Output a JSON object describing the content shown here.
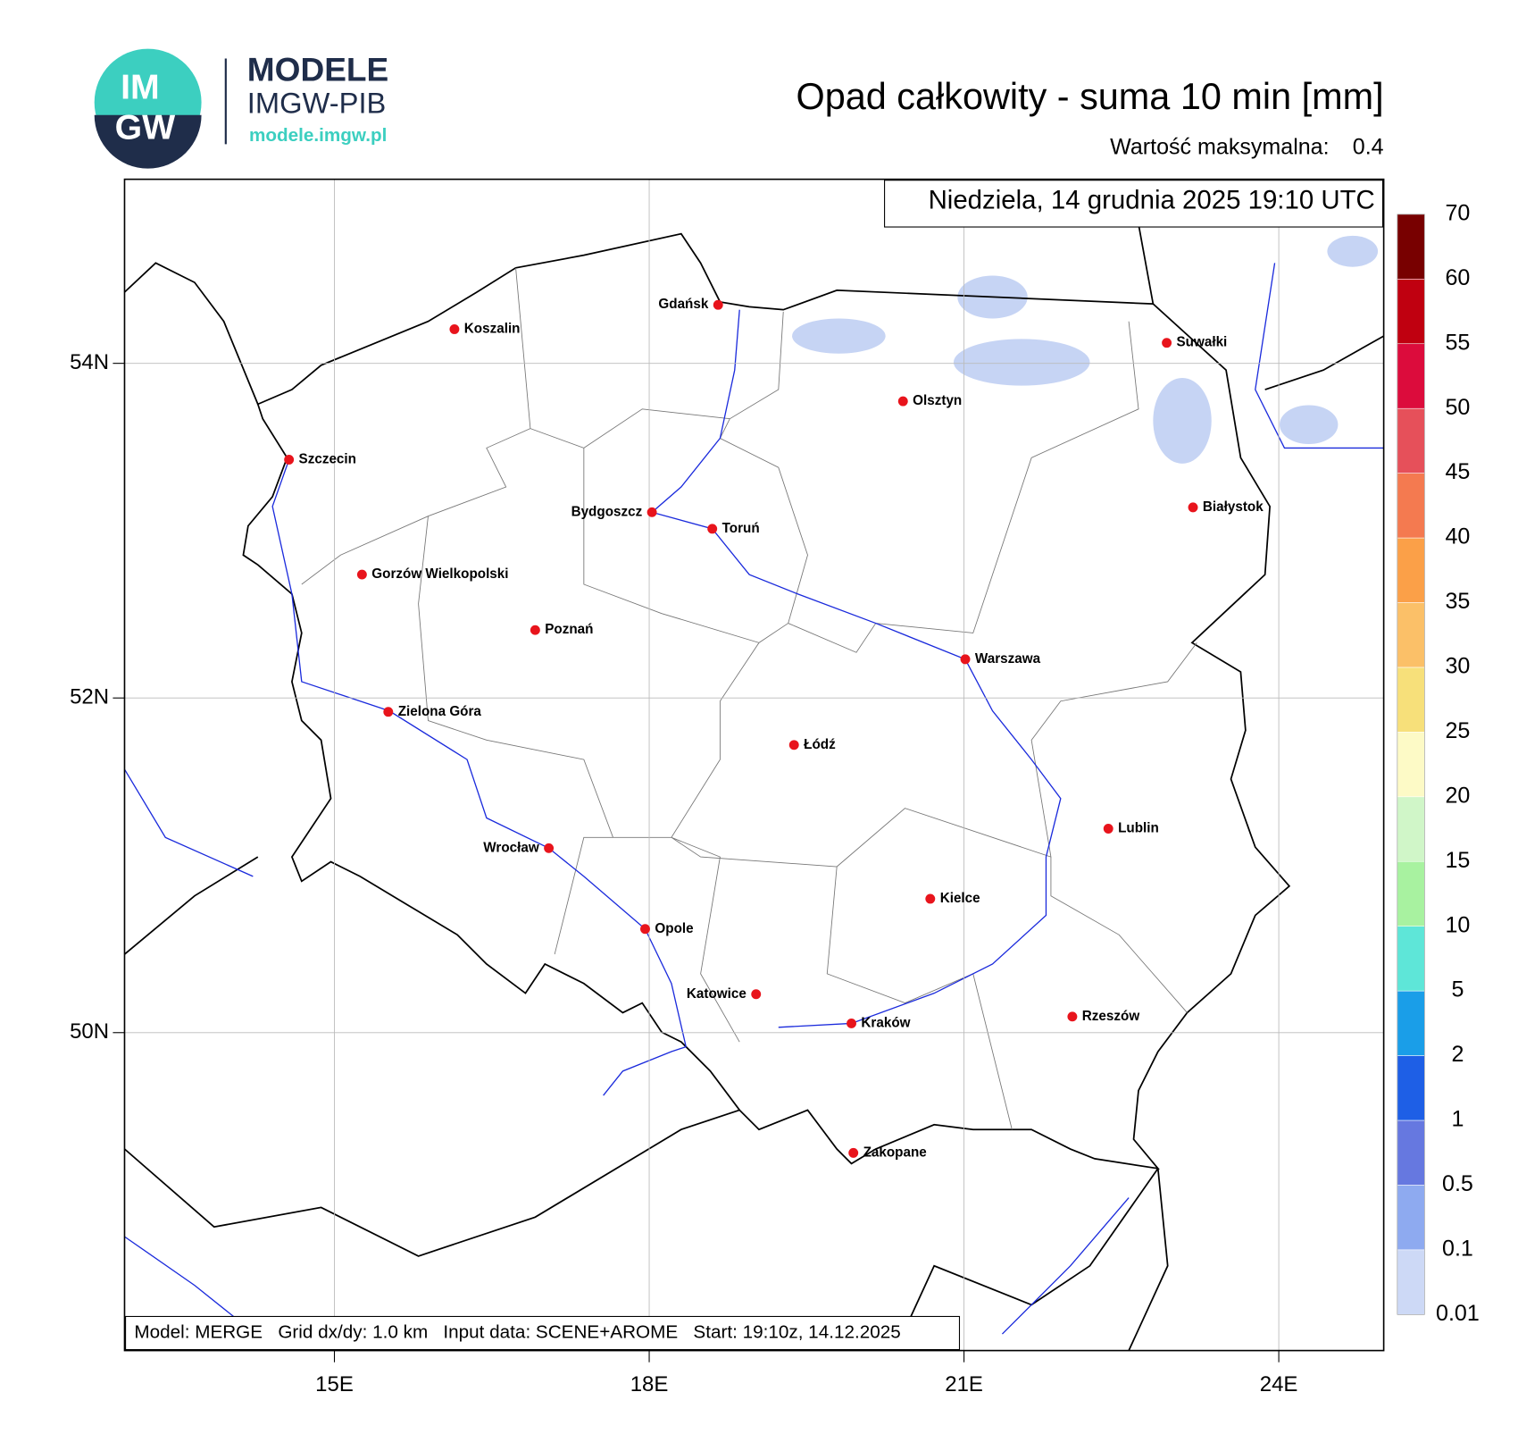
{
  "header": {
    "logo_text_top": "IM",
    "logo_text_bottom": "GW",
    "brand": "MODELE",
    "brand_sub": "IMGW-PIB",
    "url": "modele.imgw.pl"
  },
  "title": "Opad całkowity - suma 10 min [mm]",
  "max_label": "Wartość maksymalna:",
  "max_value": 0.4,
  "date": "Niedziela, 14 grudnia 2025 19:10 UTC",
  "footer": "Model: MERGE   Grid dx/dy: 1.0 km   Input data: SCENE+AROME   Start: 19:10z, 14.12.2025",
  "map": {
    "xlim": [
      13,
      25
    ],
    "ylim": [
      48.1,
      55.1
    ],
    "xticks": [
      {
        "value": 15,
        "label": "15E"
      },
      {
        "value": 18,
        "label": "18E"
      },
      {
        "value": 21,
        "label": "21E"
      },
      {
        "value": 24,
        "label": "24E"
      }
    ],
    "yticks": [
      {
        "value": 50,
        "label": "50N"
      },
      {
        "value": 52,
        "label": "52N"
      },
      {
        "value": 54,
        "label": "54N"
      }
    ],
    "grid": true,
    "city_color": "#e8141c",
    "cities": [
      "Gdańsk",
      "Koszalin",
      "Suwałki",
      "Olsztyn",
      "Szczecin",
      "Białystok",
      "Bydgoszcz",
      "Toruń",
      "Gorzów Wielkopolski",
      "Poznań",
      "Warszawa",
      "Zielona Góra",
      "Łódź",
      "Lublin",
      "Wrocław",
      "Kielce",
      "Opole",
      "Katowice",
      "Rzeszów",
      "Kraków",
      "Zakopane"
    ]
  },
  "colorbar": {
    "levels": [
      0.01,
      0.1,
      0.5,
      1,
      2,
      5,
      10,
      15,
      20,
      25,
      30,
      35,
      40,
      45,
      50,
      55,
      60,
      70
    ],
    "colors": [
      "#cdd9f6",
      "#8eaaf0",
      "#6678e0",
      "#1e5fe6",
      "#1a9ee8",
      "#5ee6d8",
      "#a8f2a0",
      "#d0f6c8",
      "#fdfac6",
      "#f7e07a",
      "#fbc068",
      "#fba048",
      "#f47a50",
      "#e6505a",
      "#dc0c3c",
      "#c00010",
      "#780000"
    ]
  }
}
